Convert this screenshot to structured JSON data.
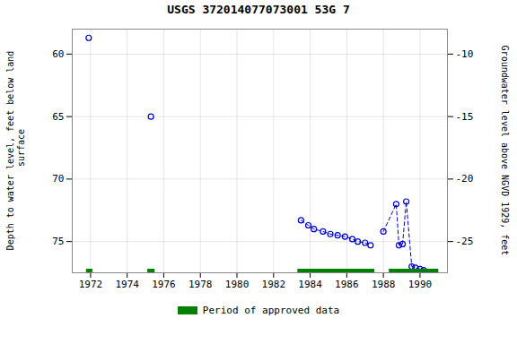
{
  "chart_data": {
    "type": "scatter",
    "title": "USGS 372014077073001 53G  7",
    "ylabel": "Depth to water level, feet below land\n surface",
    "y2label": "Groundwater level above NGVD 1929, feet",
    "x": [
      1971.9,
      1975.3,
      1983.5,
      1983.9,
      1984.2,
      1984.7,
      1985.1,
      1985.5,
      1985.9,
      1986.3,
      1986.6,
      1987.0,
      1987.3,
      1988.0,
      1988.7,
      1988.85,
      1989.05,
      1989.25,
      1989.55,
      1989.75,
      1990.0,
      1990.2
    ],
    "xlim": [
      1971.0,
      1991.5
    ],
    "xticks": [
      1972,
      1974,
      1976,
      1978,
      1980,
      1982,
      1984,
      1986,
      1988,
      1990
    ],
    "ylim": [
      77.5,
      58.0
    ],
    "yticks": [
      60,
      65,
      70,
      75
    ],
    "y2lim": [
      -27.5,
      -8.0
    ],
    "y2ticks": [
      -10,
      -15,
      -20,
      -25
    ],
    "grid": true,
    "legend": "bottom",
    "series": [
      {
        "values": [
          58.7,
          65.0,
          73.3,
          73.7,
          74.0,
          74.2,
          74.4,
          74.5,
          74.6,
          74.8,
          75.0,
          75.1,
          75.3,
          74.2,
          72.0,
          75.3,
          75.2,
          71.8,
          77.0,
          77.1,
          77.2,
          77.3
        ],
        "color": "#0000CC",
        "marker": "open_circle",
        "line_style": "dashed",
        "segments": [
          [
            2,
            12
          ],
          [
            13,
            21
          ]
        ]
      },
      {
        "name": "Period of approved data",
        "type": "bar",
        "orientation": "horizontal",
        "color": "#008000",
        "spans": [
          [
            1971.75,
            1972.1
          ],
          [
            1975.1,
            1975.5
          ],
          [
            1983.3,
            1987.5
          ],
          [
            1988.3,
            1991.0
          ]
        ]
      }
    ]
  }
}
